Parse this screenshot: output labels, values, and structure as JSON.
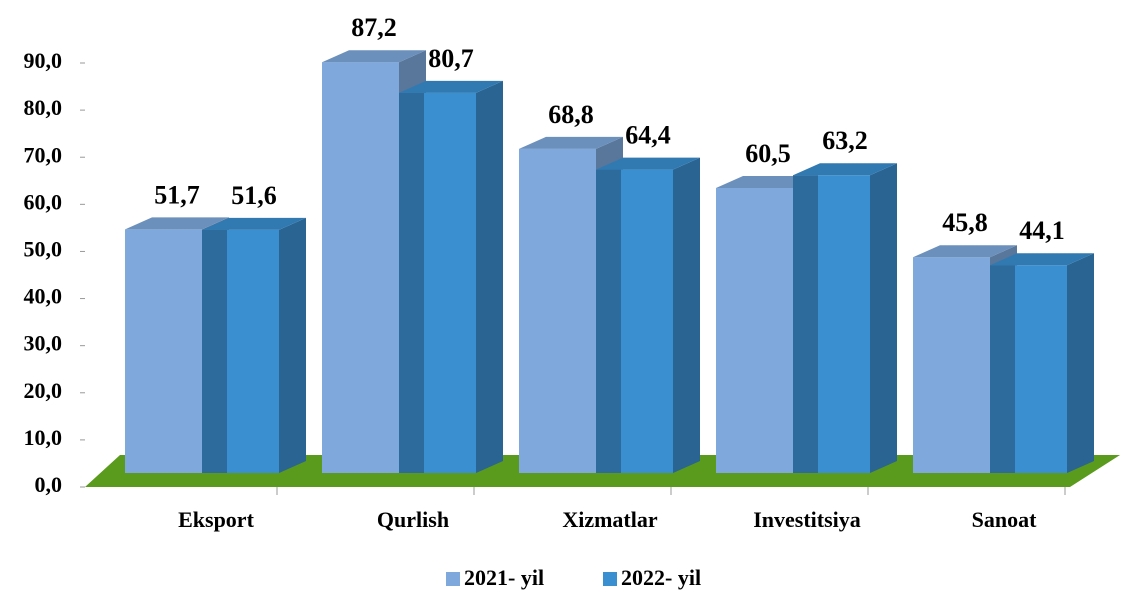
{
  "chart_data": {
    "type": "bar3d",
    "categories": [
      "Eksport",
      "Qurlish",
      "Xizmatlar",
      "Investitsiya",
      "Sanoat"
    ],
    "series": [
      {
        "name": "2021- yil",
        "color": "#7fa9dd",
        "values": [
          51.7,
          87.2,
          68.8,
          60.5,
          45.8
        ],
        "value_labels": [
          "51,7",
          "87,2",
          "68,8",
          "60,5",
          "45,8"
        ]
      },
      {
        "name": "2022- yil",
        "color": "#3a8fd0",
        "values": [
          51.6,
          80.7,
          64.4,
          63.2,
          44.1
        ],
        "value_labels": [
          "51,6",
          "80,7",
          "64,4",
          "63,2",
          "44,1"
        ]
      }
    ],
    "ylim": [
      0,
      90
    ],
    "yticks": [
      {
        "value": 0,
        "label": "0,0"
      },
      {
        "value": 10,
        "label": "10,0"
      },
      {
        "value": 20,
        "label": "20,0"
      },
      {
        "value": 30,
        "label": "30,0"
      },
      {
        "value": 40,
        "label": "40,0"
      },
      {
        "value": 50,
        "label": "50,0"
      },
      {
        "value": 60,
        "label": "60,0"
      },
      {
        "value": 70,
        "label": "70,0"
      },
      {
        "value": 80,
        "label": "80,0"
      },
      {
        "value": 90,
        "label": "90,0"
      }
    ],
    "floor_color": "#5a9a1c",
    "legend": "bottom"
  }
}
